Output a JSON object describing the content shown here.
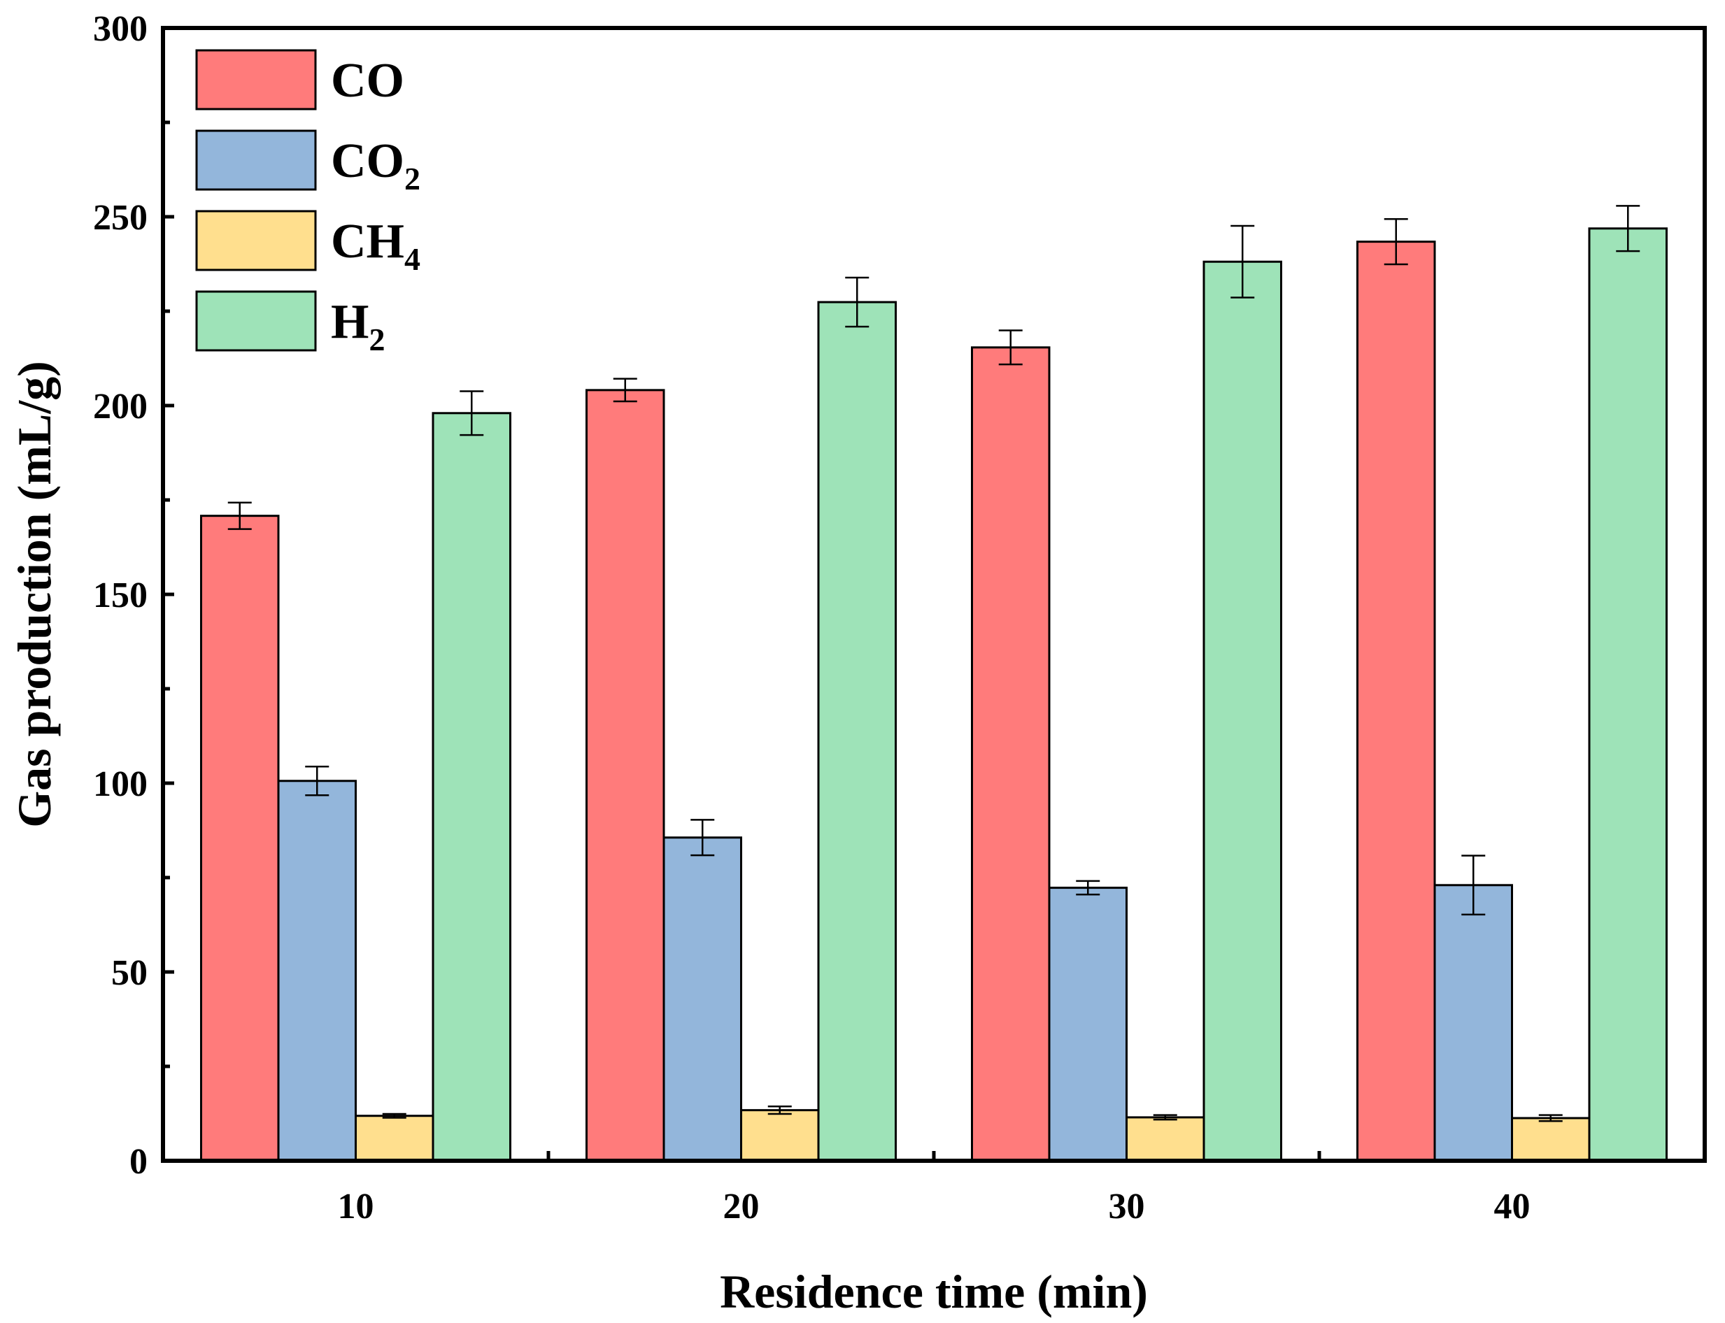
{
  "chart_data": {
    "type": "bar",
    "title": "",
    "xlabel": "Residence time (min)",
    "ylabel": "Gas production (mL/g)",
    "categories": [
      "10",
      "20",
      "30",
      "40"
    ],
    "ylim": [
      0,
      300
    ],
    "yticks": [
      "0",
      "50",
      "100",
      "150",
      "200",
      "250",
      "300"
    ],
    "series": [
      {
        "name": "CO",
        "label_main": "CO",
        "label_sub": "",
        "color": "#FF7B7B",
        "values": [
          170.8,
          204.1,
          215.4,
          243.4
        ],
        "errors": [
          3.5,
          3.0,
          4.5,
          6.0
        ]
      },
      {
        "name": "CO2",
        "label_main": "CO",
        "label_sub": "2",
        "color": "#93B6DB",
        "values": [
          100.6,
          85.6,
          72.3,
          73.0
        ],
        "errors": [
          3.8,
          4.7,
          1.8,
          7.8
        ]
      },
      {
        "name": "CH4",
        "label_main": "CH",
        "label_sub": "4",
        "color": "#FFDF8E",
        "values": [
          11.9,
          13.4,
          11.5,
          11.3
        ],
        "errors": [
          0.5,
          1.0,
          0.6,
          0.8
        ]
      },
      {
        "name": "H2",
        "label_main": "H",
        "label_sub": "2",
        "color": "#9EE3B8",
        "values": [
          198.0,
          227.4,
          238.1,
          246.9
        ],
        "errors": [
          5.8,
          6.5,
          9.5,
          6.0
        ]
      }
    ],
    "legend_position": "top-left",
    "grid": false
  }
}
